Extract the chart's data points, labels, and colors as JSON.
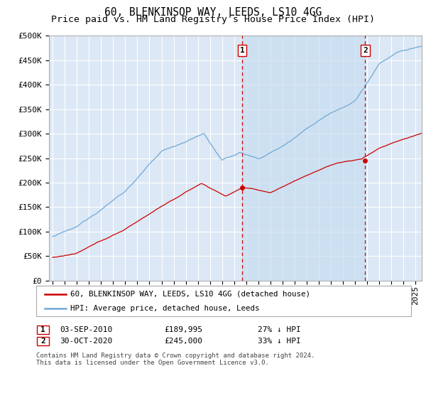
{
  "title": "60, BLENKINSOP WAY, LEEDS, LS10 4GG",
  "subtitle": "Price paid vs. HM Land Registry's House Price Index (HPI)",
  "ylim": [
    0,
    500000
  ],
  "yticks": [
    0,
    50000,
    100000,
    150000,
    200000,
    250000,
    300000,
    350000,
    400000,
    450000,
    500000
  ],
  "ytick_labels": [
    "£0",
    "£50K",
    "£100K",
    "£150K",
    "£200K",
    "£250K",
    "£300K",
    "£350K",
    "£400K",
    "£450K",
    "£500K"
  ],
  "xlim_start": 1994.7,
  "xlim_end": 2025.5,
  "plot_bg_color": "#dce8f5",
  "grid_color": "#ffffff",
  "hpi_color": "#6fa8d6",
  "property_color": "#cc0000",
  "shade_color": "#c8ddf0",
  "marker1_x": 2010.67,
  "marker2_x": 2020.83,
  "marker1_price_y": 189995,
  "marker2_price_y": 245000,
  "marker1_date": "03-SEP-2010",
  "marker1_price": "£189,995",
  "marker1_pct": "27% ↓ HPI",
  "marker2_date": "30-OCT-2020",
  "marker2_price": "£245,000",
  "marker2_pct": "33% ↓ HPI",
  "legend_line1": "60, BLENKINSOP WAY, LEEDS, LS10 4GG (detached house)",
  "legend_line2": "HPI: Average price, detached house, Leeds",
  "footnote": "Contains HM Land Registry data © Crown copyright and database right 2024.\nThis data is licensed under the Open Government Licence v3.0.",
  "title_fontsize": 10.5,
  "subtitle_fontsize": 9.5,
  "tick_fontsize": 8
}
